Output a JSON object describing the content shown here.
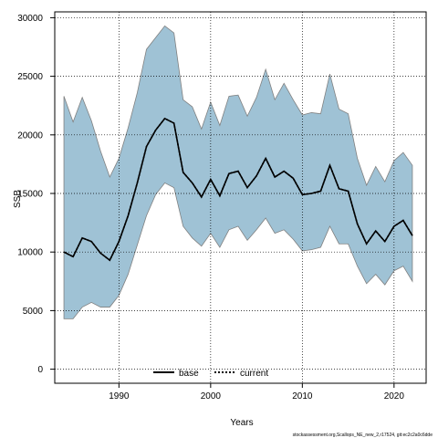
{
  "chart_data": {
    "type": "area",
    "xlabel": "Years",
    "ylabel": "SSB",
    "xlim": [
      1983,
      2023.5
    ],
    "ylim": [
      -1200,
      30500
    ],
    "x_ticks": [
      1990,
      2000,
      2010,
      2020
    ],
    "y_ticks": [
      0,
      5000,
      10000,
      15000,
      20000,
      25000,
      30000
    ],
    "grid": true,
    "legend_position": "bottom-center",
    "colors": {
      "band": "#9fc2d5",
      "band_edge": "#808080",
      "line": "#000000",
      "grid": "#000000"
    },
    "x": [
      1984,
      1985,
      1986,
      1987,
      1988,
      1989,
      1990,
      1991,
      1992,
      1993,
      1994,
      1995,
      1996,
      1997,
      1998,
      1999,
      2000,
      2001,
      2002,
      2003,
      2004,
      2005,
      2006,
      2007,
      2008,
      2009,
      2010,
      2011,
      2012,
      2013,
      2014,
      2015,
      2016,
      2017,
      2018,
      2019,
      2020,
      2021,
      2022
    ],
    "series": [
      {
        "name": "base",
        "style": "solid",
        "values": [
          10000,
          9600,
          11200,
          10900,
          9900,
          9300,
          10900,
          13100,
          15900,
          19000,
          20400,
          21400,
          21000,
          16800,
          15900,
          14700,
          16200,
          14800,
          16700,
          16900,
          15500,
          16500,
          18000,
          16400,
          16900,
          16300,
          14900,
          15000,
          15200,
          17400,
          15400,
          15200,
          12400,
          10700,
          11800,
          10900,
          12200,
          12700,
          11400
        ]
      },
      {
        "name": "current",
        "style": "dotted",
        "values": [
          10000,
          9600,
          11200,
          10900,
          9900,
          9300,
          10900,
          13100,
          15900,
          19000,
          20400,
          21400,
          21000,
          16800,
          15900,
          14700,
          16200,
          14800,
          16700,
          16900,
          15500,
          16500,
          18000,
          16400,
          16900,
          16300,
          14900,
          15000,
          15200,
          17400,
          15400,
          15200,
          12400,
          10700,
          11800,
          10900,
          12200,
          12700,
          11400
        ]
      }
    ],
    "band": {
      "upper": [
        23300,
        21100,
        23200,
        21200,
        18600,
        16400,
        18000,
        20600,
        23600,
        27300,
        28300,
        29300,
        28700,
        23000,
        22400,
        20500,
        22800,
        20800,
        23300,
        23400,
        21600,
        23200,
        25600,
        23000,
        24400,
        23000,
        21700,
        21900,
        21800,
        25200,
        22200,
        21800,
        18000,
        15700,
        17300,
        16000,
        17800,
        18500,
        17400
      ],
      "lower": [
        4300,
        4300,
        5300,
        5700,
        5300,
        5300,
        6300,
        8100,
        10600,
        13100,
        14900,
        15900,
        15500,
        12200,
        11200,
        10500,
        11600,
        10400,
        11900,
        12200,
        11000,
        11900,
        12900,
        11600,
        11900,
        11100,
        10100,
        10200,
        10400,
        12200,
        10700,
        10700,
        8800,
        7300,
        8100,
        7200,
        8400,
        8800,
        7500
      ]
    }
  },
  "footer": {
    "text": "stockassessment.org,Scallops_NE_new_2,r17524, git:ec2c2a0c6dde"
  }
}
